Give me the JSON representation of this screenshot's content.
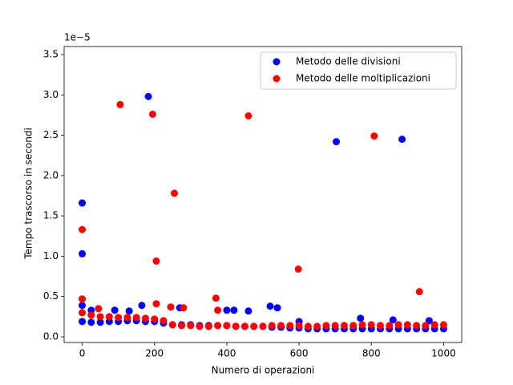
{
  "chart_data": {
    "type": "scatter",
    "xlabel": "Numero di operazioni",
    "ylabel": "Tempo trascorso in secondi",
    "y_offset_label": "1e−5",
    "xlim": [
      -50,
      1050
    ],
    "ylim": [
      -0.07,
      3.6
    ],
    "xticks": [
      0,
      200,
      400,
      600,
      800,
      1000
    ],
    "yticks": [
      {
        "value": 0,
        "label": "0.0"
      },
      0.5,
      {
        "value": 1,
        "label": "1.0"
      },
      1.5,
      {
        "value": 2,
        "label": "2.0"
      },
      2.5,
      {
        "value": 3,
        "label": "3.0"
      },
      3.5
    ],
    "legend": "upper right",
    "series": [
      {
        "name": "Metodo delle divisioni",
        "color": "#0000ff",
        "x": [
          0,
          0,
          0,
          183,
          703,
          885,
          165,
          520,
          540,
          400,
          420,
          460,
          270,
          130,
          25,
          90,
          770,
          860,
          600,
          960,
          0,
          25,
          50,
          75,
          100,
          125,
          150,
          175,
          200,
          225,
          250,
          275,
          300,
          325,
          350,
          375,
          400,
          425,
          450,
          475,
          500,
          525,
          550,
          575,
          600,
          625,
          650,
          675,
          700,
          725,
          750,
          775,
          800,
          825,
          850,
          875,
          900,
          925,
          950,
          975,
          1000
        ],
        "values": [
          1.66,
          1.03,
          0.39,
          2.98,
          2.42,
          2.45,
          0.39,
          0.38,
          0.36,
          0.33,
          0.33,
          0.32,
          0.36,
          0.32,
          0.33,
          0.33,
          0.23,
          0.21,
          0.19,
          0.2,
          0.19,
          0.18,
          0.18,
          0.19,
          0.19,
          0.2,
          0.2,
          0.19,
          0.19,
          0.17,
          0.15,
          0.15,
          0.15,
          0.14,
          0.14,
          0.14,
          0.14,
          0.13,
          0.13,
          0.13,
          0.13,
          0.12,
          0.12,
          0.11,
          0.11,
          0.1,
          0.1,
          0.1,
          0.1,
          0.1,
          0.1,
          0.1,
          0.1,
          0.1,
          0.1,
          0.1,
          0.1,
          0.1,
          0.1,
          0.1,
          0.1
        ]
      },
      {
        "name": "Metodo delle moltiplicazioni",
        "color": "#ff0000",
        "x": [
          0,
          0,
          105,
          195,
          255,
          205,
          460,
          598,
          808,
          933,
          370,
          205,
          245,
          280,
          45,
          375,
          0,
          25,
          50,
          75,
          100,
          125,
          150,
          175,
          200,
          225,
          250,
          275,
          300,
          325,
          350,
          375,
          400,
          425,
          450,
          475,
          500,
          525,
          550,
          575,
          600,
          625,
          650,
          675,
          700,
          725,
          750,
          775,
          800,
          825,
          850,
          875,
          900,
          925,
          950,
          975,
          1000
        ],
        "values": [
          1.33,
          0.47,
          2.88,
          2.76,
          1.78,
          0.94,
          2.74,
          0.84,
          2.49,
          0.56,
          0.48,
          0.41,
          0.37,
          0.36,
          0.35,
          0.33,
          0.3,
          0.27,
          0.25,
          0.25,
          0.24,
          0.24,
          0.24,
          0.23,
          0.22,
          0.2,
          0.15,
          0.14,
          0.14,
          0.13,
          0.13,
          0.14,
          0.14,
          0.13,
          0.13,
          0.13,
          0.13,
          0.14,
          0.14,
          0.14,
          0.14,
          0.13,
          0.13,
          0.14,
          0.14,
          0.14,
          0.14,
          0.15,
          0.15,
          0.14,
          0.14,
          0.15,
          0.15,
          0.14,
          0.14,
          0.15,
          0.15
        ]
      }
    ]
  }
}
